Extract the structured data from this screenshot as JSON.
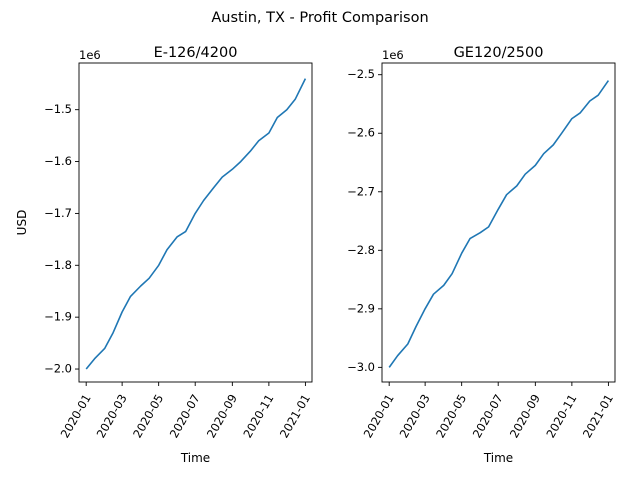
{
  "suptitle": "Austin, TX - Profit Comparison",
  "colors": {
    "series": "#1f77b4"
  },
  "chart_data": [
    {
      "type": "line",
      "title": "E-126/4200",
      "xlabel": "Time",
      "ylabel": "USD",
      "offset_label": "1e6",
      "x_ticks": [
        "2020-01",
        "2020-03",
        "2020-05",
        "2020-07",
        "2020-09",
        "2020-11",
        "2021-01"
      ],
      "y_ticks": [
        "−2.0",
        "−1.9",
        "−1.8",
        "−1.7",
        "−1.6",
        "−1.5"
      ],
      "y_tick_values": [
        -2.0,
        -1.9,
        -1.8,
        -1.7,
        -1.6,
        -1.5
      ],
      "xlim": [
        "2019-12-20",
        "2021-01-12"
      ],
      "ylim": [
        -2.025,
        -1.41
      ],
      "series": [
        {
          "x": [
            "2020-01-01",
            "2020-01-15",
            "2020-02-01",
            "2020-02-15",
            "2020-03-01",
            "2020-03-15",
            "2020-04-01",
            "2020-04-15",
            "2020-05-01",
            "2020-05-15",
            "2020-06-01",
            "2020-06-15",
            "2020-07-01",
            "2020-07-15",
            "2020-08-01",
            "2020-08-15",
            "2020-09-01",
            "2020-09-15",
            "2020-10-01",
            "2020-10-15",
            "2020-11-01",
            "2020-11-15",
            "2020-12-01",
            "2020-12-15",
            "2021-01-01"
          ],
          "values": [
            -2.0,
            -1.98,
            -1.96,
            -1.93,
            -1.89,
            -1.86,
            -1.84,
            -1.825,
            -1.8,
            -1.77,
            -1.745,
            -1.735,
            -1.7,
            -1.675,
            -1.65,
            -1.63,
            -1.615,
            -1.6,
            -1.58,
            -1.56,
            -1.545,
            -1.515,
            -1.5,
            -1.48,
            -1.44
          ]
        }
      ]
    },
    {
      "type": "line",
      "title": "GE120/2500",
      "xlabel": "Time",
      "ylabel": "",
      "offset_label": "1e6",
      "x_ticks": [
        "2020-01",
        "2020-03",
        "2020-05",
        "2020-07",
        "2020-09",
        "2020-11",
        "2021-01"
      ],
      "y_ticks": [
        "−3.0",
        "−2.9",
        "−2.8",
        "−2.7",
        "−2.6",
        "−2.5"
      ],
      "y_tick_values": [
        -3.0,
        -2.9,
        -2.8,
        -2.7,
        -2.6,
        -2.5
      ],
      "xlim": [
        "2019-12-20",
        "2021-01-12"
      ],
      "ylim": [
        -3.025,
        -2.48
      ],
      "series": [
        {
          "x": [
            "2020-01-01",
            "2020-01-15",
            "2020-02-01",
            "2020-02-15",
            "2020-03-01",
            "2020-03-15",
            "2020-04-01",
            "2020-04-15",
            "2020-05-01",
            "2020-05-15",
            "2020-06-01",
            "2020-06-15",
            "2020-07-01",
            "2020-07-15",
            "2020-08-01",
            "2020-08-15",
            "2020-09-01",
            "2020-09-15",
            "2020-10-01",
            "2020-10-15",
            "2020-11-01",
            "2020-11-15",
            "2020-12-01",
            "2020-12-15",
            "2021-01-01"
          ],
          "values": [
            -3.0,
            -2.98,
            -2.96,
            -2.93,
            -2.9,
            -2.875,
            -2.86,
            -2.84,
            -2.805,
            -2.78,
            -2.77,
            -2.76,
            -2.73,
            -2.705,
            -2.69,
            -2.67,
            -2.655,
            -2.635,
            -2.62,
            -2.6,
            -2.575,
            -2.565,
            -2.545,
            -2.535,
            -2.51
          ]
        }
      ]
    }
  ]
}
